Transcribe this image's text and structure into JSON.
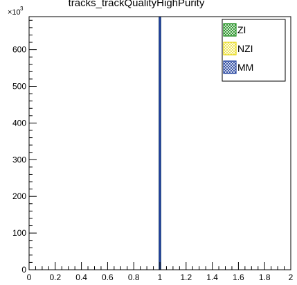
{
  "chart_data": {
    "type": "bar",
    "title": "tracks_trackQualityHighPurity",
    "y_multiplier": "×10",
    "y_multiplier_exp": "3",
    "xlim": [
      0,
      2
    ],
    "ylim": [
      0,
      690
    ],
    "x_ticks": [
      0,
      0.2,
      0.4,
      0.6,
      0.8,
      1,
      1.2,
      1.4,
      1.6,
      1.8,
      2
    ],
    "x_tick_labels": [
      "0",
      "0.2",
      "0.4",
      "0.6",
      "0.8",
      "1",
      "1.2",
      "1.4",
      "1.6",
      "1.8",
      "2"
    ],
    "y_ticks": [
      0,
      100,
      200,
      300,
      400,
      500,
      600
    ],
    "y_tick_labels": [
      "0",
      "100",
      "200",
      "300",
      "400",
      "500",
      "600"
    ],
    "grid": false,
    "legend_position": "top-right",
    "series": [
      {
        "name": "ZI",
        "color": "#1a8c1a",
        "fill": "#5fc35f",
        "bins": [
          {
            "x": 1.0,
            "value": 690
          }
        ]
      },
      {
        "name": "NZI",
        "color": "#e6d600",
        "fill": "#f5ea5a",
        "bins": [
          {
            "x": 1.0,
            "value": 690
          }
        ]
      },
      {
        "name": "MM",
        "color": "#1f3f9c",
        "fill": "#6f86cc",
        "bins": [
          {
            "x": 1.0,
            "value": 690
          }
        ]
      }
    ]
  }
}
